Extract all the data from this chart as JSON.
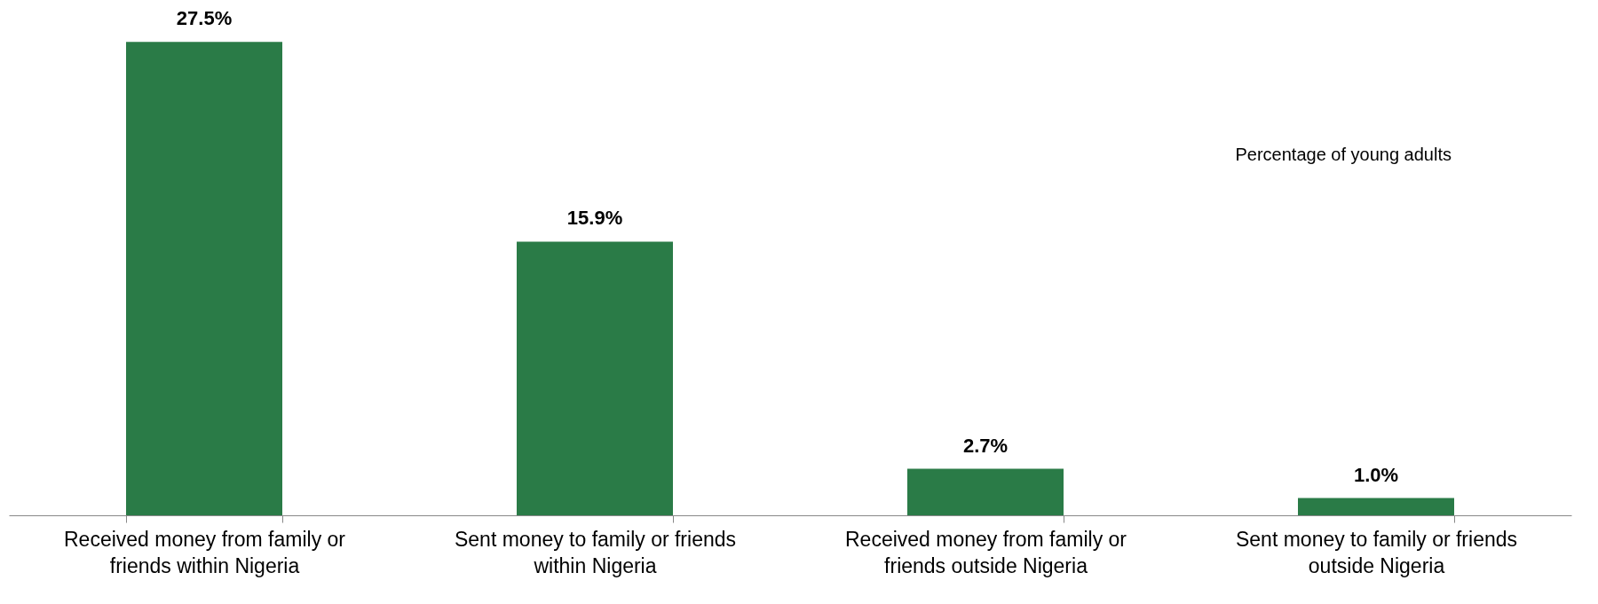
{
  "chart_data": {
    "type": "bar",
    "categories": [
      "Received money from family or friends within Nigeria",
      "Sent money to family or friends within Nigeria",
      "Received  money from family or friends outside Nigeria",
      "Sent money to family or friends outside Nigeria"
    ],
    "values": [
      27.5,
      15.9,
      2.7,
      1.0
    ],
    "value_labels": [
      "27.5%",
      "15.9%",
      "2.7%",
      "1.0%"
    ],
    "color": "#2a7b47",
    "annotations": [
      "Percentage of young adults"
    ]
  }
}
